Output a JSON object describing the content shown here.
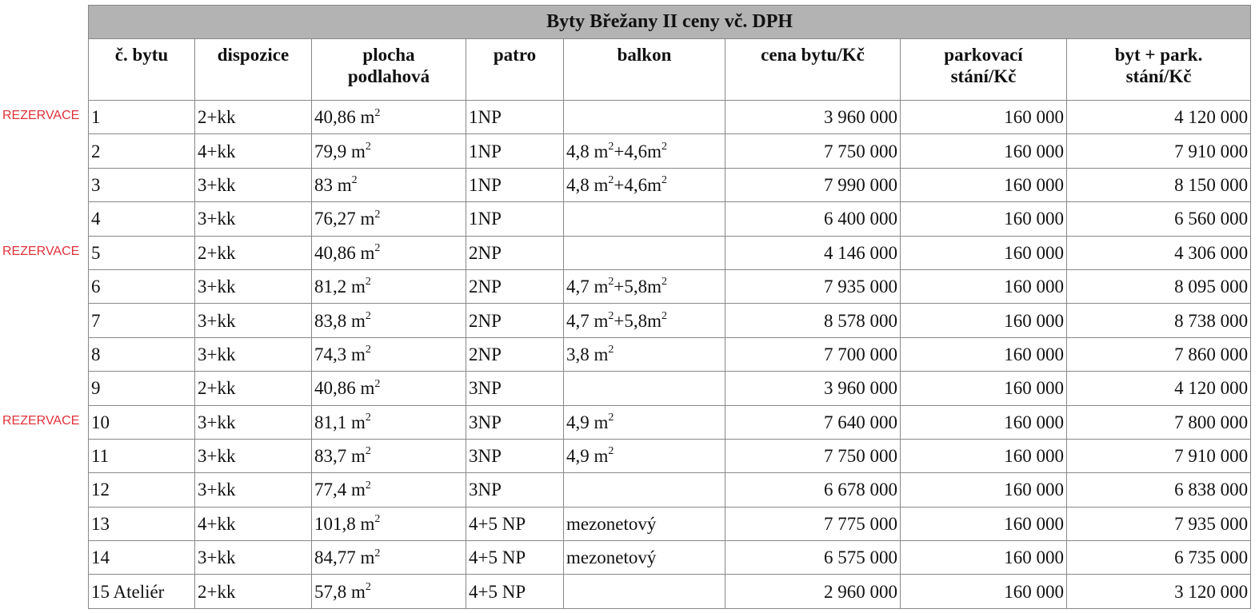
{
  "title": "Byty Břežany II ceny vč. DPH",
  "reservation_label": "REZERVACE",
  "reservation_color": "#e0313b",
  "columns": [
    "č. bytu",
    "dispozice",
    "plocha podlahová",
    "patro",
    "balkon",
    "cena bytu/Kč",
    "parkovací stání/Kč",
    "byt + park. stání/Kč"
  ],
  "rows": [
    {
      "reserved": true,
      "cells": [
        "1",
        "2+kk",
        "40,86 m²",
        "1NP",
        "",
        "3 960 000",
        "160 000",
        "4 120 000"
      ]
    },
    {
      "reserved": false,
      "cells": [
        "2",
        "4+kk",
        "79,9 m²",
        "1NP",
        "4,8 m²+4,6m²",
        "7 750 000",
        "160 000",
        "7 910 000"
      ]
    },
    {
      "reserved": false,
      "cells": [
        "3",
        "3+kk",
        "83 m²",
        "1NP",
        "4,8 m²+4,6m²",
        "7 990 000",
        "160 000",
        "8 150 000"
      ]
    },
    {
      "reserved": false,
      "cells": [
        "4",
        "3+kk",
        "76,27 m²",
        "1NP",
        "",
        "6 400 000",
        "160 000",
        "6 560 000"
      ]
    },
    {
      "reserved": true,
      "cells": [
        "5",
        "2+kk",
        "40,86 m²",
        "2NP",
        "",
        "4 146 000",
        "160 000",
        "4 306 000"
      ]
    },
    {
      "reserved": false,
      "cells": [
        "6",
        "3+kk",
        "81,2 m²",
        "2NP",
        "4,7 m²+5,8m²",
        "7 935 000",
        "160 000",
        "8 095 000"
      ]
    },
    {
      "reserved": false,
      "cells": [
        "7",
        "3+kk",
        "83,8 m²",
        "2NP",
        "4,7 m²+5,8m²",
        "8 578 000",
        "160 000",
        "8 738 000"
      ]
    },
    {
      "reserved": false,
      "cells": [
        "8",
        "3+kk",
        "74,3 m²",
        "2NP",
        "3,8 m²",
        "7 700 000",
        "160 000",
        "7 860 000"
      ]
    },
    {
      "reserved": false,
      "cells": [
        "9",
        "2+kk",
        "40,86 m²",
        "3NP",
        "",
        "3 960 000",
        "160 000",
        "4 120 000"
      ]
    },
    {
      "reserved": true,
      "cells": [
        "10",
        "3+kk",
        "81,1 m²",
        "3NP",
        "4,9 m²",
        "7 640 000",
        "160 000",
        "7 800 000"
      ]
    },
    {
      "reserved": false,
      "cells": [
        "11",
        "3+kk",
        "83,7 m²",
        "3NP",
        "4,9 m²",
        "7 750 000",
        "160 000",
        "7 910 000"
      ]
    },
    {
      "reserved": false,
      "cells": [
        "12",
        "3+kk",
        "77,4 m²",
        "3NP",
        "",
        "6 678 000",
        "160 000",
        "6 838 000"
      ]
    },
    {
      "reserved": false,
      "cells": [
        "13",
        "4+kk",
        "101,8 m²",
        "4+5 NP",
        "mezonetový",
        "7 775 000",
        "160 000",
        "7 935 000"
      ]
    },
    {
      "reserved": false,
      "cells": [
        "14",
        "3+kk",
        "84,77 m²",
        "4+5 NP",
        "mezonetový",
        "6 575 000",
        "160 000",
        "6 735 000"
      ]
    },
    {
      "reserved": false,
      "cells": [
        "15 Ateliér",
        "2+kk",
        "57,8 m²",
        "4+5 NP",
        "",
        "2 960 000",
        "160 000",
        "3 120 000"
      ]
    }
  ]
}
